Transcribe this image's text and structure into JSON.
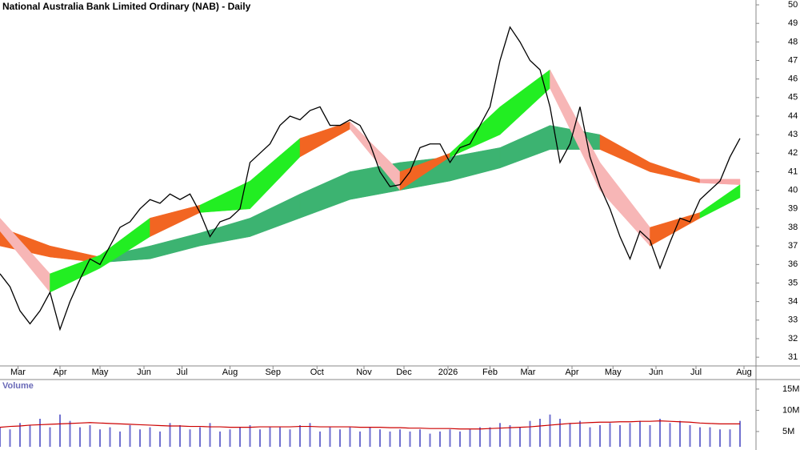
{
  "chart_data": {
    "type": "price-volume",
    "title": "National Australia Bank Limited Ordinary (NAB) - Daily",
    "volume_label": "Volume",
    "xlim": [
      0,
      75.6
    ],
    "xticks": [
      {
        "value": 1.8,
        "label": "Mar"
      },
      {
        "value": 6,
        "label": "Apr"
      },
      {
        "value": 10,
        "label": "May"
      },
      {
        "value": 14.4,
        "label": "Jun"
      },
      {
        "value": 18.2,
        "label": "Jul"
      },
      {
        "value": 23,
        "label": "Aug"
      },
      {
        "value": 27.3,
        "label": "Sep"
      },
      {
        "value": 31.7,
        "label": "Oct"
      },
      {
        "value": 36.4,
        "label": "Nov"
      },
      {
        "value": 40.4,
        "label": "Dec"
      },
      {
        "value": 44.8,
        "label": "2026"
      },
      {
        "value": 49,
        "label": "Feb"
      },
      {
        "value": 52.8,
        "label": "Mar"
      },
      {
        "value": 57.2,
        "label": "Apr"
      },
      {
        "value": 61.3,
        "label": "May"
      },
      {
        "value": 65.6,
        "label": "Jun"
      },
      {
        "value": 69.6,
        "label": "Jul"
      },
      {
        "value": 74.4,
        "label": "Aug"
      }
    ],
    "ylim": [
      30.53,
      50.26
    ],
    "yticks": [
      31,
      32,
      33,
      34,
      35,
      36,
      37,
      38,
      39,
      40,
      41,
      42,
      43,
      44,
      45,
      46,
      47,
      48,
      49,
      50
    ],
    "x": [
      0,
      1,
      2,
      3,
      4,
      5,
      6,
      7,
      8,
      9,
      10,
      11,
      12,
      13,
      14,
      15,
      16,
      17,
      18,
      19,
      20,
      21,
      22,
      23,
      24,
      25,
      26,
      27,
      28,
      29,
      30,
      31,
      32,
      33,
      34,
      35,
      36,
      37,
      38,
      39,
      40,
      41,
      42,
      43,
      44,
      45,
      46,
      47,
      48,
      49,
      50,
      51,
      52,
      53,
      54,
      55,
      56,
      57,
      58,
      59,
      60,
      61,
      62,
      63,
      64,
      65,
      66,
      67,
      68,
      69,
      70,
      71,
      72,
      73,
      74
    ],
    "price": {
      "color": "#000000",
      "values": [
        35.5,
        34.8,
        33.5,
        32.8,
        33.5,
        34.5,
        32.5,
        34,
        35.2,
        36.3,
        36,
        37,
        38,
        38.3,
        39,
        39.5,
        39.3,
        39.8,
        39.5,
        39.8,
        38.8,
        37.5,
        38.3,
        38.5,
        39,
        41.5,
        42,
        42.5,
        43.5,
        44,
        43.8,
        44.3,
        44.5,
        43.5,
        43.5,
        43.8,
        43.5,
        42.5,
        41,
        40.2,
        40.3,
        41,
        42.3,
        42.5,
        42.5,
        41.5,
        42.3,
        42.5,
        43.5,
        44.5,
        47,
        48.8,
        48,
        47,
        46.5,
        44.5,
        41.5,
        42.5,
        44.5,
        41.8,
        40.2,
        39,
        37.5,
        36.3,
        37.8,
        37.3,
        35.8,
        37.2,
        38.5,
        38.3,
        39.5,
        40,
        40.5,
        41.8,
        42.8
      ]
    },
    "ribbons": [
      {
        "x": [
          0,
          5,
          10,
          15,
          20,
          25,
          30,
          35,
          40,
          45,
          50,
          55,
          60,
          65,
          70,
          74
        ],
        "upper": [
          38,
          37,
          36.4,
          37,
          37.7,
          38.5,
          39.8,
          41,
          41.5,
          41.8,
          42.3,
          43.5,
          43,
          41.5,
          40.6,
          40.6
        ],
        "lower": [
          37,
          36.4,
          36.1,
          36.3,
          37,
          37.5,
          38.5,
          39.5,
          40,
          40.5,
          41.2,
          42.2,
          42.2,
          41,
          40.4,
          40.3
        ],
        "colors": [
          "#f26522",
          "#f26522",
          "#3cb371",
          "#3cb371",
          "#3cb371",
          "#3cb371",
          "#3cb371",
          "#3cb371",
          "#3cb371",
          "#3cb371",
          "#3cb371",
          "#3cb371",
          "#f26522",
          "#f26522",
          "#f7a8a8"
        ]
      },
      {
        "x": [
          0,
          5,
          10,
          15,
          20,
          25,
          30,
          35,
          40,
          45,
          50,
          55,
          60,
          65,
          70,
          74
        ],
        "upper": [
          38.5,
          35.5,
          36.5,
          38.5,
          39.2,
          40.5,
          42.8,
          43.7,
          41,
          42,
          44.5,
          46.5,
          41.5,
          38,
          38.8,
          40.3
        ],
        "lower": [
          37.8,
          34.5,
          35.8,
          37.5,
          38.8,
          39,
          41.8,
          43.3,
          40,
          41.8,
          43,
          45.5,
          40,
          37,
          38.5,
          39.6
        ],
        "colors": [
          "#f7b6b6",
          "#22ee22",
          "#22ee22",
          "#f26522",
          "#22ee22",
          "#22ee22",
          "#f26522",
          "#f7b6b6",
          "#f26522",
          "#22ee22",
          "#22ee22",
          "#f7b6b6",
          "#f7b6b6",
          "#f26522",
          "#22ee22"
        ]
      }
    ],
    "volume": {
      "color": "#7070d0",
      "values": [
        6,
        5.5,
        7,
        6.5,
        8,
        6,
        9,
        7.5,
        6,
        6.5,
        5.5,
        6,
        5,
        6.5,
        5.5,
        6,
        5,
        7,
        6.5,
        5.5,
        6,
        7,
        5,
        5.5,
        6,
        6.5,
        5.5,
        6,
        6,
        5.5,
        6.5,
        7,
        5,
        6,
        5.5,
        6,
        5,
        6,
        5.5,
        5,
        5.5,
        5,
        5.5,
        4.5,
        5,
        5.5,
        5,
        5.5,
        6,
        6,
        7,
        6.5,
        6,
        7.5,
        8,
        9,
        8,
        7,
        7.5,
        6,
        6.5,
        7,
        6.5,
        7,
        7.5,
        6.5,
        8,
        7,
        7.5,
        6.5,
        6,
        6,
        5.5,
        5.5,
        7.5
      ]
    },
    "volume_ma": {
      "color": "#cc0000",
      "values": [
        6,
        6.2,
        6.3,
        6.5,
        6.6,
        6.7,
        6.8,
        6.9,
        7,
        7.1,
        7,
        6.9,
        6.8,
        6.7,
        6.6,
        6.5,
        6.4,
        6.3,
        6.3,
        6.2,
        6.2,
        6.1,
        6.1,
        6,
        6,
        6,
        6.1,
        6.1,
        6.1,
        6.1,
        6.2,
        6.2,
        6.1,
        6.1,
        6.1,
        6.1,
        6,
        6,
        6,
        5.9,
        5.9,
        5.8,
        5.8,
        5.7,
        5.7,
        5.7,
        5.6,
        5.6,
        5.6,
        5.7,
        5.8,
        5.9,
        6,
        6.1,
        6.3,
        6.5,
        6.7,
        6.9,
        7,
        7.1,
        7.2,
        7.2,
        7.3,
        7.3,
        7.4,
        7.4,
        7.5,
        7.4,
        7.3,
        7.2,
        7,
        6.9,
        6.8,
        6.8,
        6.8
      ]
    },
    "vlim": [
      1.4,
      16.3
    ],
    "vticks": [
      {
        "value": 15,
        "label": "15M"
      },
      {
        "value": 10,
        "label": "10M"
      },
      {
        "value": 5,
        "label": "5M"
      }
    ]
  }
}
